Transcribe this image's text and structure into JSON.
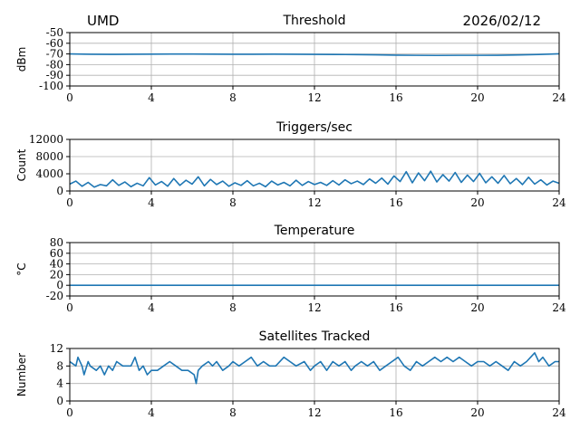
{
  "header": {
    "station": "UMD",
    "date": "2026/02/12"
  },
  "colors": {
    "series": "#1f77b4",
    "grid": "#b0b0b0",
    "axis": "#000000"
  },
  "chart_data": [
    {
      "type": "line",
      "title": "Threshold",
      "ylabel": "dBm",
      "xlabel": "",
      "xlim": [
        0,
        24
      ],
      "ylim": [
        -100,
        -50
      ],
      "xticks": [
        0,
        4,
        8,
        12,
        16,
        20,
        24
      ],
      "yticks": [
        -100,
        -90,
        -80,
        -70,
        -60,
        -50
      ],
      "grid": true,
      "series": [
        {
          "x": [
            0,
            1,
            2,
            3,
            4,
            5,
            6,
            7,
            8,
            9,
            10,
            11,
            12,
            13,
            14,
            15,
            16,
            17,
            18,
            19,
            20,
            21,
            22,
            23,
            24
          ],
          "y": [
            -70,
            -70.3,
            -70.4,
            -70.3,
            -70.2,
            -70.1,
            -70.1,
            -70.2,
            -70.3,
            -70.3,
            -70.2,
            -70.3,
            -70.4,
            -70.5,
            -70.6,
            -70.8,
            -71.1,
            -71.3,
            -71.4,
            -71.3,
            -71.3,
            -71.2,
            -70.9,
            -70.5,
            -69.9
          ]
        }
      ]
    },
    {
      "type": "line",
      "title": "Triggers/sec",
      "ylabel": "Count",
      "xlabel": "",
      "xlim": [
        0,
        24
      ],
      "ylim": [
        0,
        12000
      ],
      "xticks": [
        0,
        4,
        8,
        12,
        16,
        20,
        24
      ],
      "yticks": [
        0,
        4000,
        8000,
        12000
      ],
      "grid": true,
      "series": [
        {
          "x": [
            0,
            0.3,
            0.6,
            0.9,
            1.2,
            1.5,
            1.8,
            2.1,
            2.4,
            2.7,
            3.0,
            3.3,
            3.6,
            3.9,
            4.2,
            4.5,
            4.8,
            5.1,
            5.4,
            5.7,
            6.0,
            6.3,
            6.6,
            6.9,
            7.2,
            7.5,
            7.8,
            8.1,
            8.4,
            8.7,
            9.0,
            9.3,
            9.6,
            9.9,
            10.2,
            10.5,
            10.8,
            11.1,
            11.4,
            11.7,
            12.0,
            12.3,
            12.6,
            12.9,
            13.2,
            13.5,
            13.8,
            14.1,
            14.4,
            14.7,
            15.0,
            15.3,
            15.6,
            15.9,
            16.2,
            16.5,
            16.8,
            17.1,
            17.4,
            17.7,
            18.0,
            18.3,
            18.6,
            18.9,
            19.2,
            19.5,
            19.8,
            20.1,
            20.4,
            20.7,
            21.0,
            21.3,
            21.6,
            21.9,
            22.2,
            22.5,
            22.8,
            23.1,
            23.4,
            23.7,
            24.0
          ],
          "y": [
            1600,
            2300,
            1100,
            2000,
            900,
            1500,
            1200,
            2600,
            1300,
            2100,
            1000,
            1800,
            1200,
            3100,
            1400,
            2200,
            1100,
            2900,
            1300,
            2500,
            1600,
            3300,
            1200,
            2700,
            1500,
            2300,
            1100,
            1900,
            1300,
            2400,
            1200,
            1800,
            1000,
            2300,
            1400,
            2000,
            1200,
            2500,
            1300,
            2200,
            1500,
            2000,
            1300,
            2400,
            1400,
            2600,
            1700,
            2300,
            1500,
            2800,
            1800,
            3000,
            1600,
            3500,
            2200,
            4500,
            1900,
            4200,
            2400,
            4600,
            2100,
            3800,
            2300,
            4300,
            2000,
            3700,
            2200,
            4100,
            1900,
            3300,
            1800,
            3600,
            1700,
            2900,
            1500,
            3200,
            1600,
            2600,
            1400,
            2300,
            1800
          ]
        }
      ]
    },
    {
      "type": "line",
      "title": "Temperature",
      "ylabel": "°C",
      "xlabel": "",
      "xlim": [
        0,
        24
      ],
      "ylim": [
        -20,
        80
      ],
      "xticks": [
        0,
        4,
        8,
        12,
        16,
        20,
        24
      ],
      "yticks": [
        -20,
        0,
        20,
        40,
        60,
        80
      ],
      "grid": true,
      "series": [
        {
          "x": [
            0,
            24
          ],
          "y": [
            0,
            0
          ]
        }
      ]
    },
    {
      "type": "line",
      "title": "Satellites Tracked",
      "ylabel": "Number",
      "xlabel": "",
      "xlim": [
        0,
        24
      ],
      "ylim": [
        0,
        12
      ],
      "xticks": [
        0,
        4,
        8,
        12,
        16,
        20,
        24
      ],
      "yticks": [
        0,
        4,
        8,
        12
      ],
      "grid": true,
      "series": [
        {
          "x": [
            0,
            0.3,
            0.4,
            0.6,
            0.7,
            0.9,
            1.0,
            1.3,
            1.5,
            1.7,
            1.9,
            2.1,
            2.3,
            2.6,
            3.0,
            3.2,
            3.4,
            3.6,
            3.8,
            4.0,
            4.3,
            4.6,
            4.9,
            5.2,
            5.5,
            5.8,
            6.1,
            6.2,
            6.3,
            6.5,
            6.8,
            7.0,
            7.2,
            7.5,
            7.8,
            8.0,
            8.3,
            8.6,
            8.9,
            9.2,
            9.5,
            9.8,
            10.1,
            10.5,
            10.8,
            11.1,
            11.5,
            11.8,
            12.0,
            12.3,
            12.6,
            12.9,
            13.2,
            13.5,
            13.8,
            14.0,
            14.3,
            14.6,
            14.9,
            15.2,
            15.5,
            15.8,
            16.1,
            16.4,
            16.7,
            17.0,
            17.3,
            17.6,
            17.9,
            18.2,
            18.5,
            18.8,
            19.1,
            19.4,
            19.7,
            20.0,
            20.3,
            20.6,
            20.9,
            21.2,
            21.5,
            21.8,
            22.1,
            22.4,
            22.6,
            22.8,
            23.0,
            23.2,
            23.5,
            23.8,
            24.0
          ],
          "y": [
            9,
            8,
            10,
            8,
            6,
            9,
            8,
            7,
            8,
            6,
            8,
            7,
            9,
            8,
            8,
            10,
            7,
            8,
            6,
            7,
            7,
            8,
            9,
            8,
            7,
            7,
            6,
            4,
            7,
            8,
            9,
            8,
            9,
            7,
            8,
            9,
            8,
            9,
            10,
            8,
            9,
            8,
            8,
            10,
            9,
            8,
            9,
            7,
            8,
            9,
            7,
            9,
            8,
            9,
            7,
            8,
            9,
            8,
            9,
            7,
            8,
            9,
            10,
            8,
            7,
            9,
            8,
            9,
            10,
            9,
            10,
            9,
            10,
            9,
            8,
            9,
            9,
            8,
            9,
            8,
            7,
            9,
            8,
            9,
            10,
            11,
            9,
            10,
            8,
            9,
            9
          ]
        }
      ]
    }
  ]
}
